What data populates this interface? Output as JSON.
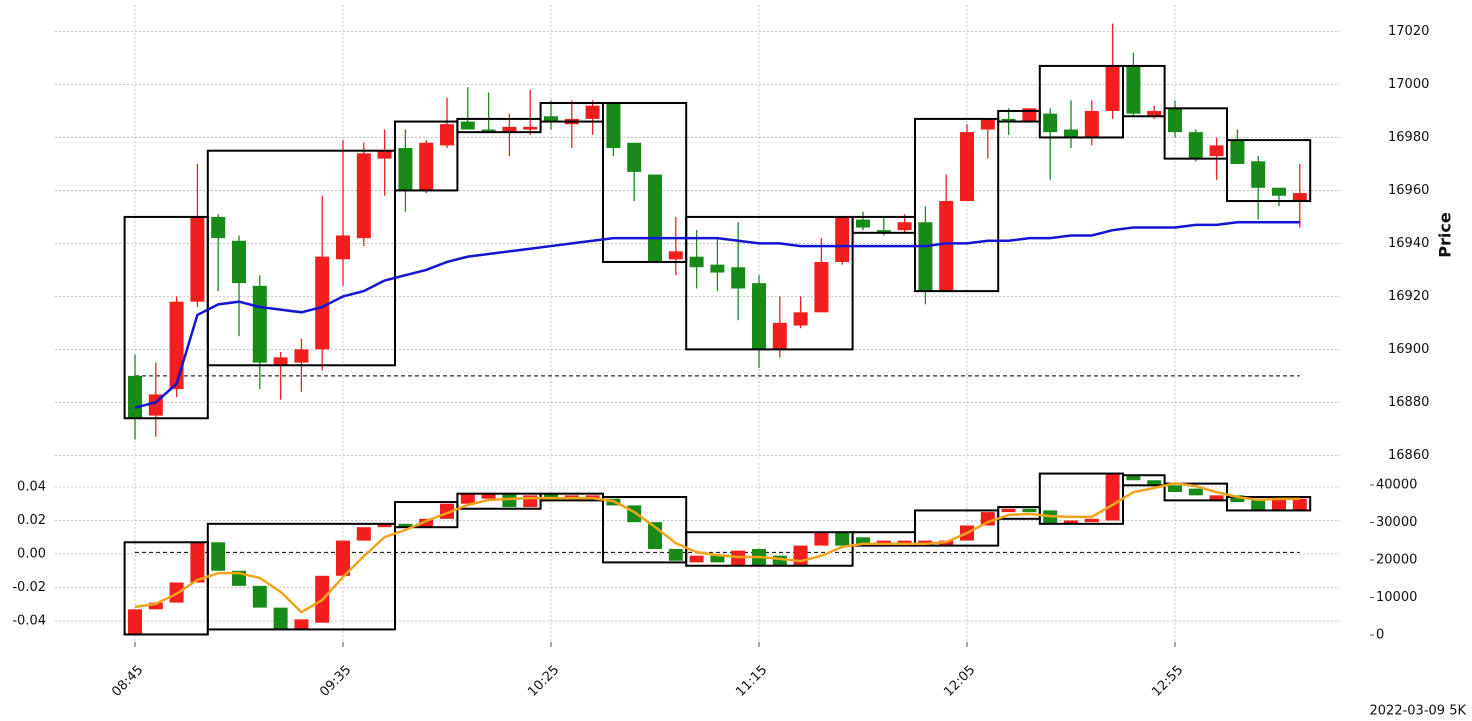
{
  "chart_data": [
    {
      "type": "candlestick",
      "ylabel": "Price",
      "up_color": "#f21d1d",
      "down_color": "#178a17",
      "grid": true,
      "ylim": [
        16859,
        17030
      ],
      "yticks": [
        16860,
        16880,
        16900,
        16920,
        16940,
        16960,
        16980,
        17000,
        17020
      ],
      "open": [
        16890,
        16875,
        16885,
        16918,
        16950,
        16941,
        16924,
        16894,
        16895,
        16900,
        16934,
        16942,
        16972,
        16976,
        16960,
        16977,
        16986,
        16983,
        16982,
        16983,
        16988,
        16985,
        16987,
        16993,
        16978,
        16966,
        16934,
        16935,
        16932,
        16931,
        16925,
        16900,
        16909,
        16914,
        16933,
        16949,
        16945,
        16945,
        16948,
        16922,
        16956,
        16983,
        16987,
        16986,
        16989,
        16983,
        16980,
        16990,
        17007,
        16988,
        16991,
        16982,
        16973,
        16979,
        16971,
        16961,
        16956
      ],
      "high": [
        16898,
        16895,
        16920,
        16970,
        16951,
        16943,
        16928,
        16899,
        16904,
        16958,
        16979,
        16978,
        16983,
        16983,
        16979,
        16995,
        16999,
        16997,
        16989,
        16998,
        16994,
        16994,
        16994,
        16993,
        16978,
        16966,
        16950,
        16945,
        16942,
        16948,
        16928,
        16920,
        16920,
        16942,
        16950,
        16952,
        16950,
        16951,
        16954,
        16966,
        16985,
        16987,
        16991,
        16991,
        16991,
        16994,
        16994,
        17023,
        17012,
        16992,
        16994,
        16983,
        16980,
        16983,
        16973,
        16961,
        16970
      ],
      "low": [
        16866,
        16867,
        16882,
        16916,
        16922,
        16905,
        16885,
        16881,
        16884,
        16892,
        16924,
        16939,
        16958,
        16952,
        16959,
        16976,
        16983,
        16982,
        16973,
        16981,
        16983,
        16976,
        16981,
        16973,
        16956,
        16933,
        16928,
        16923,
        16922,
        16911,
        16893,
        16897,
        16908,
        16914,
        16932,
        16945,
        16943,
        16944,
        16917,
        16922,
        16956,
        16972,
        16981,
        16986,
        16964,
        16976,
        16977,
        16987,
        16988,
        16987,
        16980,
        16971,
        16964,
        16970,
        16949,
        16954,
        16946
      ],
      "close": [
        16874,
        16883,
        16918,
        16950,
        16942,
        16925,
        16895,
        16897,
        16900,
        16935,
        16943,
        16974,
        16975,
        16960,
        16978,
        16985,
        16983,
        16982,
        16984,
        16984,
        16986,
        16987,
        16992,
        16976,
        16967,
        16933,
        16937,
        16931,
        16929,
        16923,
        16900,
        16910,
        16914,
        16933,
        16950,
        16946,
        16944,
        16948,
        16922,
        16956,
        16982,
        16987,
        16986,
        16991,
        16982,
        16980,
        16990,
        17007,
        16989,
        16990,
        16982,
        16972,
        16977,
        16970,
        16961,
        16958,
        16959
      ],
      "series": [
        {
          "color": "#1414d2",
          "values": [
            16878,
            16880,
            16887,
            16913,
            16917,
            16918,
            16916,
            16915,
            16914,
            16916,
            16920,
            16922,
            16926,
            16928,
            16930,
            16933,
            16935,
            16936,
            16937,
            16938,
            16939,
            16940,
            16941,
            16942,
            16942,
            16942,
            16942,
            16942,
            16942,
            16941,
            16940,
            16940,
            16939,
            16939,
            16939,
            16939,
            16939,
            16939,
            16939,
            16940,
            16940,
            16941,
            16941,
            16942,
            16942,
            16943,
            16943,
            16945,
            16946,
            16946,
            16946,
            16947,
            16947,
            16948,
            16948,
            16948,
            16948
          ]
        }
      ],
      "hline": 16890,
      "boxes": [
        {
          "start": 0,
          "end": 3,
          "top": 16950,
          "bottom": 16874
        },
        {
          "start": 4,
          "end": 12,
          "top": 16975,
          "bottom": 16894
        },
        {
          "start": 13,
          "end": 15,
          "top": 16986,
          "bottom": 16960
        },
        {
          "start": 16,
          "end": 19,
          "top": 16987,
          "bottom": 16982
        },
        {
          "start": 20,
          "end": 22,
          "top": 16993,
          "bottom": 16986
        },
        {
          "start": 23,
          "end": 26,
          "top": 16993,
          "bottom": 16933
        },
        {
          "start": 27,
          "end": 34,
          "top": 16950,
          "bottom": 16900
        },
        {
          "start": 35,
          "end": 37,
          "top": 16950,
          "bottom": 16944
        },
        {
          "start": 38,
          "end": 41,
          "top": 16987,
          "bottom": 16922
        },
        {
          "start": 42,
          "end": 43,
          "top": 16990,
          "bottom": 16986
        },
        {
          "start": 44,
          "end": 47,
          "top": 17007,
          "bottom": 16980
        },
        {
          "start": 48,
          "end": 49,
          "top": 17007,
          "bottom": 16988
        },
        {
          "start": 50,
          "end": 52,
          "top": 16991,
          "bottom": 16972
        },
        {
          "start": 53,
          "end": 56,
          "top": 16979,
          "bottom": 16956
        }
      ]
    },
    {
      "type": "candlestick",
      "up_color": "#f21d1d",
      "down_color": "#178a17",
      "grid": true,
      "caption": "2022-03-09 5K",
      "categories": [
        "08:45",
        null,
        null,
        null,
        null,
        null,
        null,
        null,
        null,
        null,
        "09:35",
        null,
        null,
        null,
        null,
        null,
        null,
        null,
        null,
        null,
        "10:25",
        null,
        null,
        null,
        null,
        null,
        null,
        null,
        null,
        null,
        "11:15",
        null,
        null,
        null,
        null,
        null,
        null,
        null,
        null,
        null,
        "12:05",
        null,
        null,
        null,
        null,
        null,
        null,
        null,
        null,
        null,
        "12:55",
        null,
        null,
        null,
        null,
        null,
        null
      ],
      "ylim": [
        -0.0525,
        0.0543
      ],
      "yticks": [
        -0.04,
        -0.02,
        {
          "value": 0,
          "label": "0.00"
        },
        0.02,
        0.04
      ],
      "y2lim": [
        -1867,
        45867
      ],
      "y2ticks": [
        0,
        10000,
        20000,
        30000,
        40000
      ],
      "open": [
        -0.048,
        -0.033,
        -0.029,
        -0.017,
        0.007,
        -0.01,
        -0.019,
        -0.032,
        -0.045,
        -0.041,
        -0.013,
        0.008,
        0.016,
        0.018,
        0.016,
        0.021,
        0.03,
        0.033,
        0.036,
        0.028,
        0.036,
        0.034,
        0.033,
        0.033,
        0.029,
        0.019,
        0.003,
        -0.005,
        -0.001,
        -0.007,
        0.003,
        -0.001,
        -0.007,
        0.005,
        0.013,
        0.01,
        0.005,
        0.005,
        0.005,
        0.005,
        0.008,
        0.017,
        0.025,
        0.027,
        0.026,
        0.018,
        0.019,
        0.02,
        0.047,
        0.044,
        0.041,
        0.039,
        0.032,
        0.035,
        0.033,
        0.026,
        0.026
      ],
      "close": [
        -0.033,
        -0.029,
        -0.017,
        0.007,
        -0.01,
        -0.019,
        -0.032,
        -0.045,
        -0.039,
        -0.013,
        0.008,
        0.016,
        0.018,
        0.016,
        0.021,
        0.03,
        0.036,
        0.036,
        0.028,
        0.035,
        0.034,
        0.035,
        0.035,
        0.029,
        0.019,
        0.003,
        -0.004,
        -0.001,
        -0.005,
        0.002,
        -0.007,
        -0.007,
        0.005,
        0.013,
        0.005,
        0.005,
        0.008,
        0.008,
        0.008,
        0.008,
        0.017,
        0.025,
        0.027,
        0.025,
        0.018,
        0.02,
        0.021,
        0.048,
        0.044,
        0.041,
        0.037,
        0.035,
        0.035,
        0.031,
        0.026,
        0.033,
        0.033
      ],
      "series": [
        {
          "axis": "y2",
          "color": "#efa41c",
          "values": [
            7500,
            8300,
            11000,
            14700,
            16500,
            16500,
            15200,
            11500,
            6100,
            9300,
            15500,
            21000,
            26100,
            28000,
            30400,
            32500,
            34700,
            36000,
            36300,
            36500,
            36500,
            36500,
            36500,
            35700,
            32800,
            28800,
            24500,
            22100,
            21300,
            20800,
            20800,
            20300,
            19700,
            21100,
            23500,
            24300,
            24300,
            24300,
            24300,
            24800,
            27200,
            30100,
            32000,
            32300,
            31700,
            31500,
            31500,
            34700,
            38100,
            39200,
            40500,
            39700,
            38100,
            36800,
            36000,
            36300,
            36300
          ]
        }
      ],
      "hline": 0.001,
      "boxes": [
        {
          "start": 0,
          "end": 3,
          "top": 0.007,
          "bottom": -0.048
        },
        {
          "start": 4,
          "end": 12,
          "top": 0.018,
          "bottom": -0.045
        },
        {
          "start": 13,
          "end": 15,
          "top": 0.031,
          "bottom": 0.016
        },
        {
          "start": 16,
          "end": 19,
          "top": 0.036,
          "bottom": 0.027
        },
        {
          "start": 20,
          "end": 22,
          "top": 0.036,
          "bottom": 0.032
        },
        {
          "start": 23,
          "end": 26,
          "top": 0.034,
          "bottom": -0.005
        },
        {
          "start": 27,
          "end": 34,
          "top": 0.013,
          "bottom": -0.007
        },
        {
          "start": 35,
          "end": 37,
          "top": 0.013,
          "bottom": 0.005
        },
        {
          "start": 38,
          "end": 41,
          "top": 0.026,
          "bottom": 0.005
        },
        {
          "start": 42,
          "end": 43,
          "top": 0.028,
          "bottom": 0.021
        },
        {
          "start": 44,
          "end": 47,
          "top": 0.048,
          "bottom": 0.018
        },
        {
          "start": 48,
          "end": 49,
          "top": 0.047,
          "bottom": 0.041
        },
        {
          "start": 50,
          "end": 52,
          "top": 0.042,
          "bottom": 0.032
        },
        {
          "start": 53,
          "end": 56,
          "top": 0.034,
          "bottom": 0.026
        }
      ]
    }
  ]
}
